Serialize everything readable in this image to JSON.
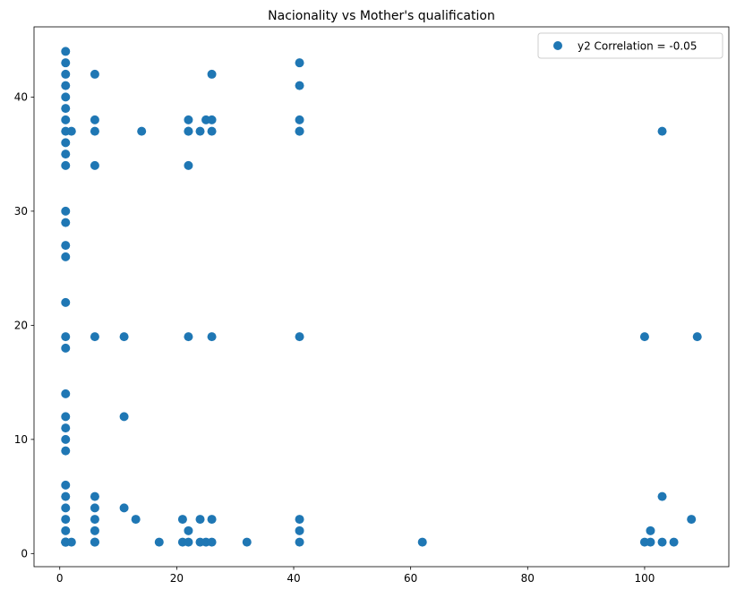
{
  "chart_data": {
    "type": "scatter",
    "title": "Nacionality vs Mother's qualification",
    "xlabel": "",
    "ylabel": "",
    "xlim": [
      -4.4,
      114.4
    ],
    "ylim": [
      -1.15,
      46.15
    ],
    "grid": false,
    "legend_position": "top-right",
    "x_ticks": [
      0,
      20,
      40,
      60,
      80,
      100
    ],
    "y_ticks": [
      0,
      10,
      20,
      30,
      40
    ],
    "x_tick_labels": [
      "0",
      "20",
      "40",
      "60",
      "80",
      "100"
    ],
    "y_tick_labels": [
      "0",
      "10",
      "20",
      "30",
      "40"
    ],
    "series": [
      {
        "name": "y2 Correlation = -0.05",
        "color": "#1f77b4",
        "x": [
          1,
          1,
          1,
          1,
          1,
          1,
          1,
          1,
          1,
          1,
          1,
          1,
          1,
          1,
          1,
          1,
          1,
          1,
          1,
          1,
          1,
          1,
          1,
          1,
          1,
          1,
          1,
          1,
          1,
          1,
          1,
          1,
          1,
          1,
          1,
          1,
          2,
          2,
          6,
          6,
          6,
          6,
          6,
          6,
          6,
          6,
          6,
          6,
          6,
          11,
          11,
          11,
          13,
          14,
          17,
          21,
          21,
          22,
          22,
          22,
          22,
          22,
          22,
          22,
          24,
          24,
          24,
          25,
          25,
          26,
          26,
          26,
          26,
          26,
          26,
          32,
          41,
          41,
          41,
          41,
          41,
          41,
          41,
          41,
          41,
          62,
          100,
          100,
          101,
          101,
          103,
          103,
          103,
          105,
          108,
          109
        ],
        "y": [
          1,
          2,
          3,
          4,
          5,
          6,
          9,
          10,
          11,
          12,
          14,
          18,
          19,
          22,
          26,
          27,
          29,
          30,
          34,
          35,
          36,
          37,
          38,
          39,
          40,
          41,
          42,
          43,
          44,
          1,
          1,
          1,
          1,
          1,
          1,
          1,
          1,
          37,
          1,
          2,
          3,
          4,
          5,
          19,
          34,
          37,
          38,
          42,
          1,
          4,
          12,
          19,
          3,
          37,
          1,
          1,
          3,
          1,
          2,
          19,
          34,
          37,
          38,
          37,
          1,
          3,
          37,
          1,
          38,
          1,
          3,
          19,
          37,
          38,
          42,
          1,
          1,
          2,
          3,
          19,
          37,
          38,
          41,
          43,
          37,
          1,
          1,
          19,
          1,
          2,
          1,
          5,
          37,
          1,
          3,
          19
        ]
      }
    ]
  }
}
